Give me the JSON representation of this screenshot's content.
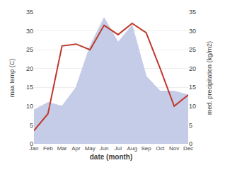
{
  "chart_data": {
    "type": "line",
    "xlabel": "date (month)",
    "ylabel": "max temp (C)",
    "y2label": "med. precipitation (kg/m2)",
    "categories": [
      "Jan",
      "Feb",
      "Mar",
      "Apr",
      "May",
      "Jun",
      "Jul",
      "Aug",
      "Sep",
      "Oct",
      "Nov",
      "Dec"
    ],
    "series": [
      {
        "type": "area",
        "axis": "y2",
        "color": "#c5cce8",
        "values": [
          9.0,
          11.0,
          10.0,
          15.0,
          26.0,
          33.5,
          27.0,
          31.5,
          18.0,
          14.0,
          14.0,
          13.0
        ]
      },
      {
        "type": "line",
        "color": "#c0392b",
        "values": [
          3.5,
          8.0,
          26.0,
          26.5,
          25.0,
          31.5,
          29.0,
          32.0,
          29.5,
          20.0,
          10.0,
          13.0
        ]
      }
    ],
    "ylim": [
      0,
      35
    ],
    "yticks": [
      0,
      5,
      10,
      15,
      20,
      25,
      30,
      35
    ],
    "y2lim": [
      0,
      35
    ],
    "y2ticks": [
      0,
      5,
      10,
      15,
      20,
      25,
      30,
      35
    ],
    "grid": true
  }
}
